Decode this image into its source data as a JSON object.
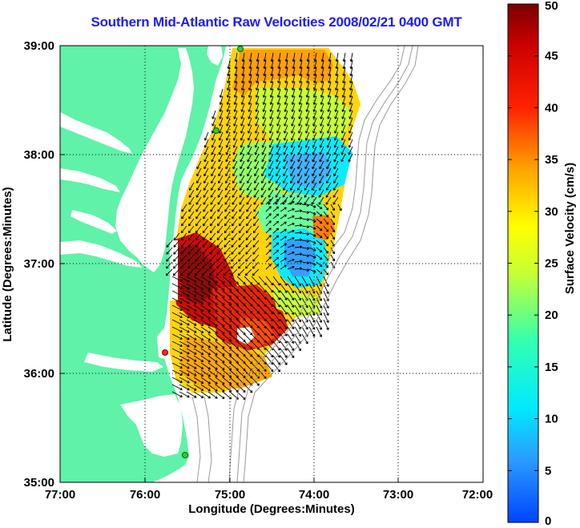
{
  "title": "Southern Mid-Atlantic Raw Velocities 2008/02/21 0400 GMT",
  "axes": {
    "xlabel": "Longitude (Degrees:Minutes)",
    "ylabel": "Latitude (Degrees:Minutes)",
    "xticks": [
      "77:00",
      "76:00",
      "75:00",
      "74:00",
      "73:00",
      "72:00"
    ],
    "yticks": [
      "39:00",
      "38:00",
      "37:00",
      "36:00",
      "35:00"
    ]
  },
  "colorbar": {
    "label": "Surface Velocity (cm/s)",
    "ticks": [
      "50",
      "45",
      "40",
      "35",
      "30",
      "25",
      "20",
      "15",
      "10",
      "5",
      "0"
    ],
    "range": [
      0,
      50
    ]
  },
  "colors": {
    "land": "#5ff2a8",
    "title": "#1a1aff",
    "bathymetry": "#9a9a9a"
  }
}
